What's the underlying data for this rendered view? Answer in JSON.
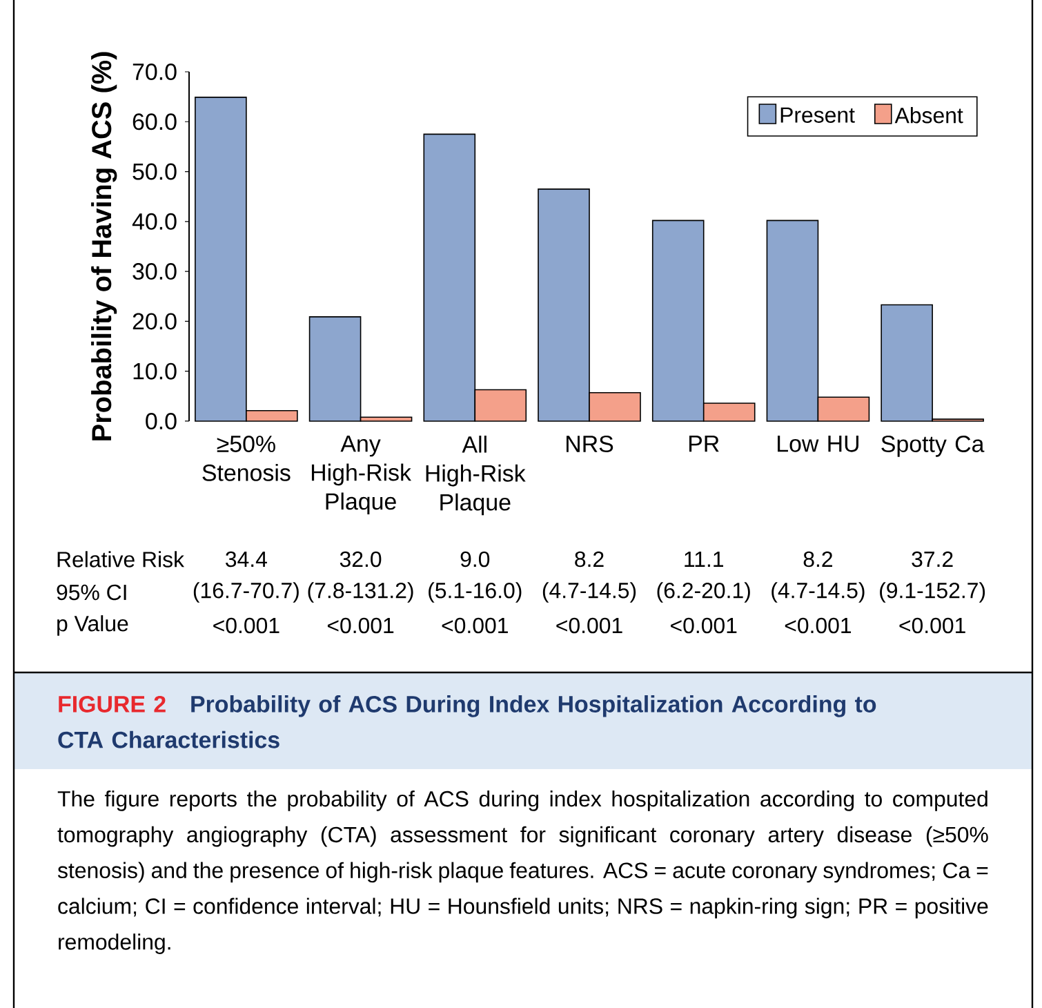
{
  "chart_data": {
    "type": "bar",
    "title": "Probability of ACS During Index Hospitalization According to CTA Characteristics",
    "ylabel": "Probability of Having ACS (%)",
    "categories": [
      "≥50% Stenosis",
      "Any High-Risk Plaque",
      "All High-Risk Plaque",
      "NRS",
      "PR",
      "Low HU",
      "Spotty Ca"
    ],
    "series": [
      {
        "name": "Present",
        "color": "#8da6ce",
        "values": [
          64.9,
          20.9,
          57.5,
          46.5,
          40.2,
          40.2,
          23.3
        ]
      },
      {
        "name": "Absent",
        "color": "#f4a08a",
        "values": [
          2.1,
          0.8,
          6.3,
          5.7,
          3.6,
          4.8,
          0.4
        ]
      }
    ],
    "ylim": [
      0,
      70
    ],
    "yticks": [
      {
        "value": 0,
        "label": "0.0"
      },
      {
        "value": 10,
        "label": "10.0"
      },
      {
        "value": 20,
        "label": "20.0"
      },
      {
        "value": 30,
        "label": "30.0"
      },
      {
        "value": 40,
        "label": "40.0"
      },
      {
        "value": 50,
        "label": "50.0"
      },
      {
        "value": 60,
        "label": "60.0"
      },
      {
        "value": 70,
        "label": "70.0"
      }
    ],
    "legend": "top right",
    "annotations": [
      "FIGURE 2",
      "The figure reports the probability of ACS during index hospitalization according to computed tomography angiography (CTA) assessment for significant coronary artery disease (≥50% stenosis) and the presence of high-risk plaque features. ACS = acute coronary syndromes; Ca = calcium; CI = confidence interval; HU = Hounsfield units; NRS = napkin-ring sign; PR = positive remodeling.",
      "Relative Risk",
      "95% CI",
      "p Value",
      "34.4",
      "32.0",
      "9.0",
      "8.2",
      "11.1",
      "8.2",
      "37.2",
      "(16.7-70.7)",
      "(7.8-131.2)",
      "(5.1-16.0)",
      "(4.7-14.5)",
      "(6.2-20.1)",
      "(4.7-14.5)",
      "(9.1-152.7)",
      "<0.001",
      "<0.001",
      "<0.001",
      "<0.001",
      "<0.001",
      "<0.001",
      "<0.001"
    ]
  }
}
